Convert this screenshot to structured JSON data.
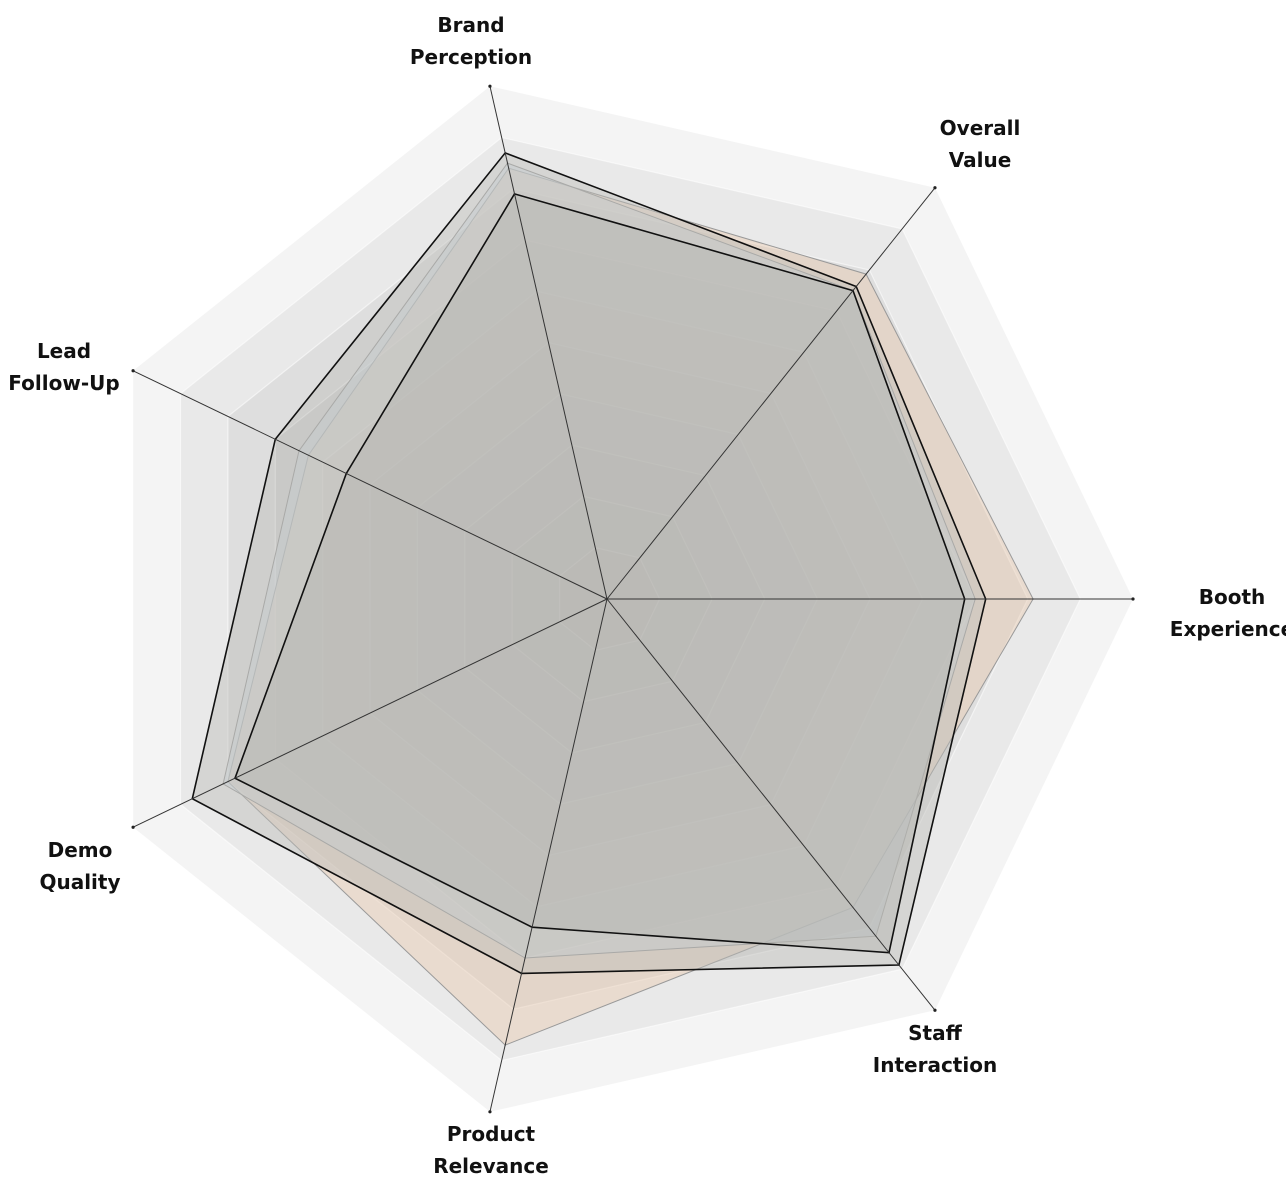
{
  "chart_data": {
    "type": "radar",
    "axes": [
      "Booth Experience",
      "Overall Value",
      "Brand Perception",
      "Lead Follow-Up",
      "Demo Quality",
      "Product Relevance",
      "Staff Interaction"
    ],
    "axis_labels": [
      [
        "Booth",
        "Experience"
      ],
      [
        "Overall",
        "Value"
      ],
      [
        "Brand",
        "Perception"
      ],
      [
        "Lead",
        "Follow-Up"
      ],
      [
        "Demo",
        "Quality"
      ],
      [
        "Product",
        "Relevance"
      ],
      [
        "Staff",
        "Interaction"
      ]
    ],
    "range": [
      0,
      1
    ],
    "grid_levels": 10,
    "grid": true,
    "legend": "none",
    "series": [
      {
        "values": [
          0.81,
          0.79,
          0.84,
          0.63,
          0.8,
          0.87,
          0.75
        ],
        "color": "#e8c9b0",
        "outline": "#999999"
      },
      {
        "values": [
          0.7,
          0.75,
          0.85,
          0.65,
          0.81,
          0.7,
          0.82
        ],
        "color": "#c9d6e0",
        "outline": "#999999"
      },
      {
        "values": [
          0.72,
          0.76,
          0.87,
          0.7,
          0.875,
          0.73,
          0.89
        ],
        "color": "#bcbcb8",
        "outline": "#111111"
      },
      {
        "values": [
          0.68,
          0.75,
          0.79,
          0.55,
          0.785,
          0.64,
          0.86
        ],
        "color": "#b4b4b0",
        "outline": "#111111"
      }
    ]
  }
}
